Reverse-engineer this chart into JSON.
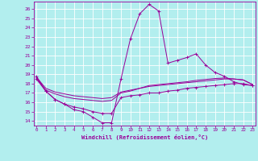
{
  "xlabel": "Windchill (Refroidissement éolien,°C)",
  "bg_color": "#b2eeee",
  "grid_color": "#ffffff",
  "line_color": "#990099",
  "x_ticks": [
    0,
    1,
    2,
    3,
    4,
    5,
    6,
    7,
    8,
    9,
    10,
    11,
    12,
    13,
    14,
    15,
    16,
    17,
    18,
    19,
    20,
    21,
    22,
    23
  ],
  "y_ticks": [
    14,
    15,
    16,
    17,
    18,
    19,
    20,
    21,
    22,
    23,
    24,
    25,
    26
  ],
  "xlim": [
    -0.3,
    23.3
  ],
  "ylim": [
    13.5,
    26.8
  ],
  "series": [
    {
      "x": [
        0,
        1,
        2,
        3,
        4,
        5,
        6,
        7,
        8,
        9,
        10,
        11,
        12,
        13,
        14,
        15,
        16,
        17,
        18,
        19,
        20,
        21,
        22,
        23
      ],
      "y": [
        18.8,
        17.2,
        16.3,
        15.8,
        15.2,
        15.0,
        14.4,
        13.8,
        13.8,
        18.5,
        22.8,
        25.5,
        26.5,
        25.8,
        20.2,
        20.5,
        20.8,
        21.2,
        20.0,
        19.2,
        18.8,
        18.2,
        17.9,
        17.8
      ],
      "marker": true
    },
    {
      "x": [
        0,
        1,
        2,
        3,
        4,
        5,
        6,
        7,
        8,
        9,
        10,
        11,
        12,
        13,
        14,
        15,
        16,
        17,
        18,
        19,
        20,
        21,
        22,
        23
      ],
      "y": [
        18.5,
        17.2,
        16.3,
        15.8,
        15.5,
        15.3,
        15.0,
        14.8,
        14.8,
        16.5,
        16.7,
        16.8,
        17.0,
        17.0,
        17.2,
        17.3,
        17.5,
        17.6,
        17.7,
        17.8,
        17.9,
        18.0,
        18.0,
        17.8
      ],
      "marker": true
    },
    {
      "x": [
        0,
        1,
        2,
        3,
        4,
        5,
        6,
        7,
        8,
        9,
        10,
        11,
        12,
        13,
        14,
        15,
        16,
        17,
        18,
        19,
        20,
        21,
        22,
        23
      ],
      "y": [
        18.7,
        17.5,
        17.1,
        16.9,
        16.7,
        16.6,
        16.5,
        16.4,
        16.5,
        17.1,
        17.3,
        17.5,
        17.7,
        17.8,
        17.9,
        18.0,
        18.1,
        18.2,
        18.3,
        18.4,
        18.5,
        18.5,
        18.4,
        17.9
      ],
      "marker": false
    },
    {
      "x": [
        0,
        1,
        2,
        3,
        4,
        5,
        6,
        7,
        8,
        9,
        10,
        11,
        12,
        13,
        14,
        15,
        16,
        17,
        18,
        19,
        20,
        21,
        22,
        23
      ],
      "y": [
        18.6,
        17.3,
        16.9,
        16.6,
        16.4,
        16.3,
        16.2,
        16.1,
        16.2,
        17.0,
        17.2,
        17.5,
        17.8,
        17.9,
        18.0,
        18.1,
        18.2,
        18.35,
        18.45,
        18.55,
        18.6,
        18.5,
        18.4,
        17.9
      ],
      "marker": false
    }
  ]
}
